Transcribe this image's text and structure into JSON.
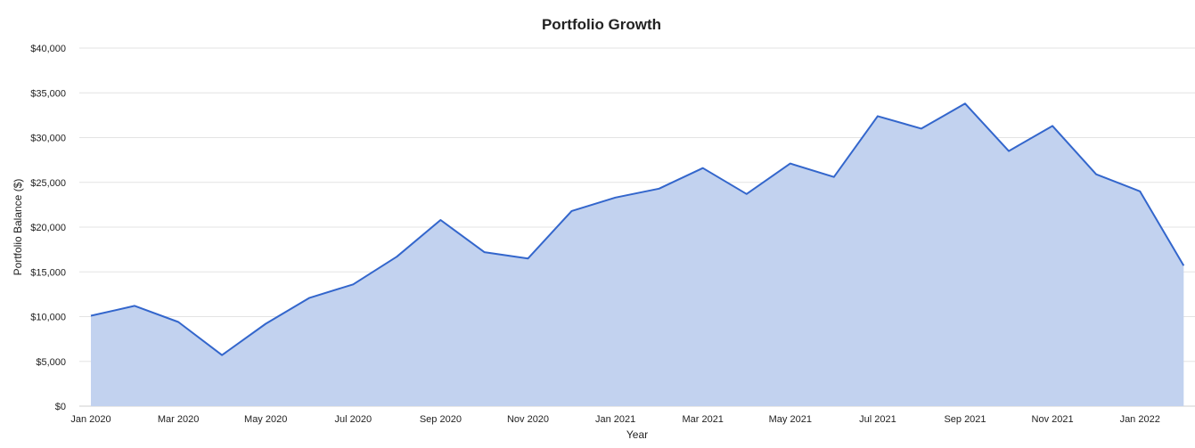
{
  "chart_data": {
    "type": "area",
    "title": "Portfolio Growth",
    "xlabel": "Year",
    "ylabel": "Portfolio Balance ($)",
    "ylim": [
      0,
      40000
    ],
    "y_ticks": [
      "$0",
      "$5,000",
      "$10,000",
      "$15,000",
      "$20,000",
      "$25,000",
      "$30,000",
      "$35,000",
      "$40,000"
    ],
    "x_ticks": [
      "Jan 2020",
      "Mar 2020",
      "May 2020",
      "Jul 2020",
      "Sep 2020",
      "Nov 2020",
      "Jan 2021",
      "Mar 2021",
      "May 2021",
      "Jul 2021",
      "Sep 2021",
      "Nov 2021",
      "Jan 2022"
    ],
    "x": [
      "Jan 2020",
      "Feb 2020",
      "Mar 2020",
      "Apr 2020",
      "May 2020",
      "Jun 2020",
      "Jul 2020",
      "Aug 2020",
      "Sep 2020",
      "Oct 2020",
      "Nov 2020",
      "Dec 2020",
      "Jan 2021",
      "Feb 2021",
      "Mar 2021",
      "Apr 2021",
      "May 2021",
      "Jun 2021",
      "Jul 2021",
      "Aug 2021",
      "Sep 2021",
      "Oct 2021",
      "Nov 2021",
      "Dec 2021",
      "Jan 2022",
      "Feb 2022"
    ],
    "series": [
      {
        "values": [
          10100,
          11200,
          9400,
          5700,
          9200,
          12100,
          13600,
          16700,
          20800,
          17200,
          16500,
          21800,
          23300,
          24300,
          26600,
          23700,
          27100,
          25600,
          32400,
          31000,
          33800,
          28500,
          31300,
          25900,
          24000,
          15700
        ]
      }
    ],
    "grid": true,
    "line_color": "#3366cc",
    "fill_color": "#c2d2ef"
  }
}
